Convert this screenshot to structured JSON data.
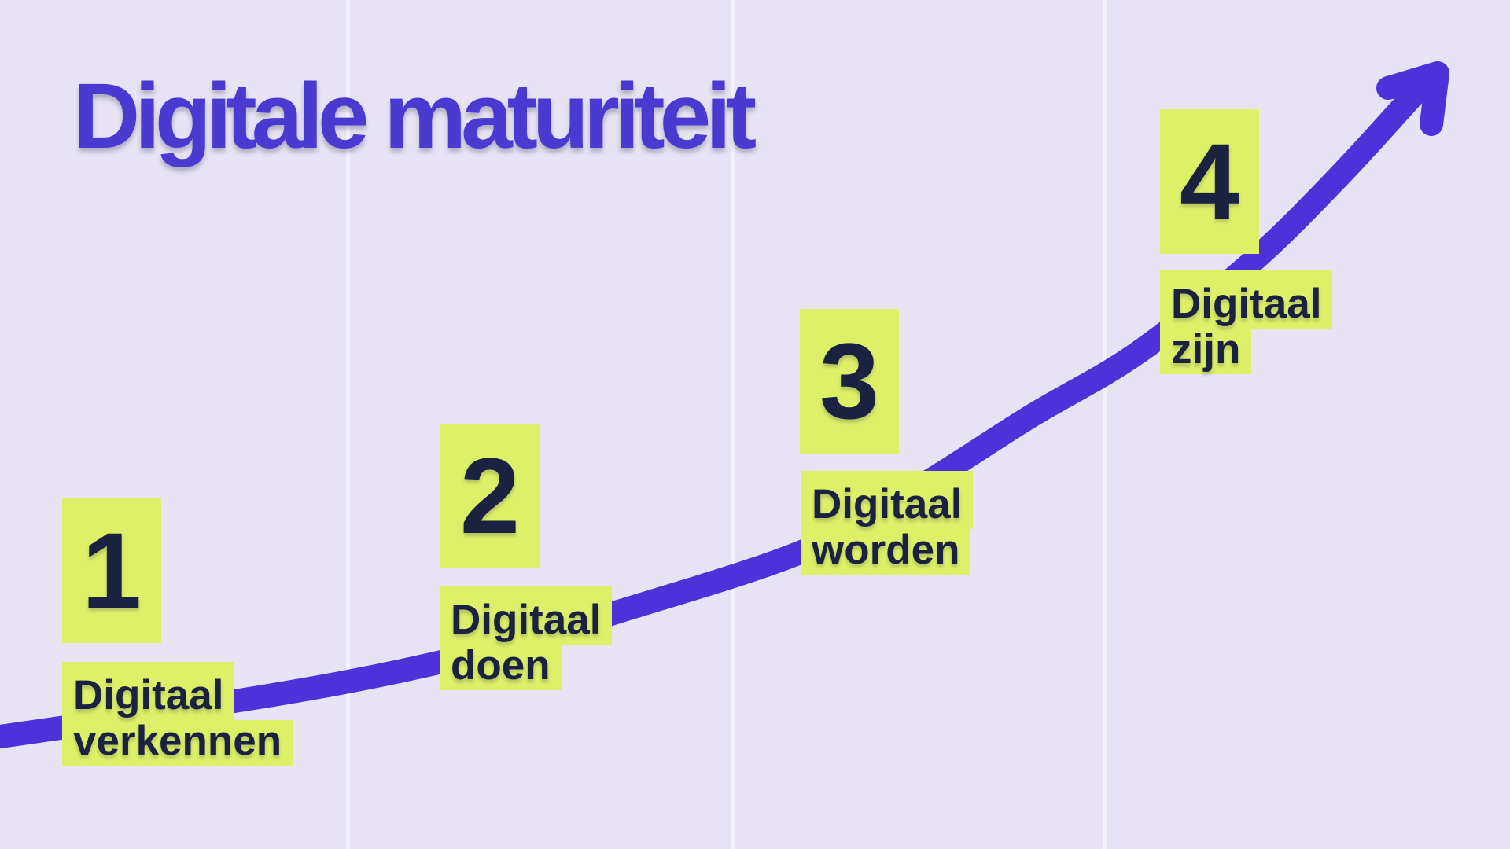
{
  "title": "Digitale maturiteit",
  "stages": [
    {
      "number": "1",
      "label_line1": "Digitaal",
      "label_line2": "verkennen"
    },
    {
      "number": "2",
      "label_line1": "Digitaal",
      "label_line2": "doen"
    },
    {
      "number": "3",
      "label_line1": "Digitaal",
      "label_line2": "worden"
    },
    {
      "number": "4",
      "label_line1": "Digitaal",
      "label_line2": "zijn"
    }
  ],
  "colors": {
    "bg": "#E7E3F4",
    "stripe": "#F3F1FA",
    "lime": "#DEF068",
    "navy": "#1A2240",
    "title": "#4B3AD2",
    "line": "#4D31D9"
  }
}
